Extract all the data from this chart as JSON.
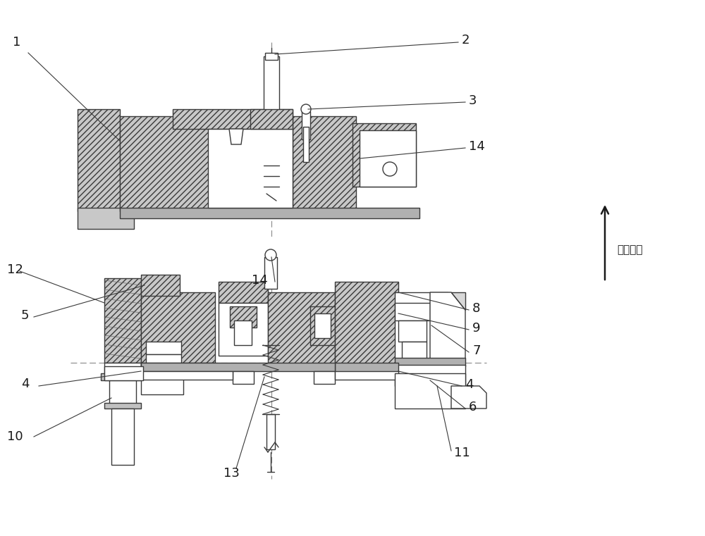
{
  "bg_color": "#ffffff",
  "line_color": "#3a3a3a",
  "fig_width": 10.0,
  "fig_height": 7.61,
  "arrow_label": "对插方向"
}
